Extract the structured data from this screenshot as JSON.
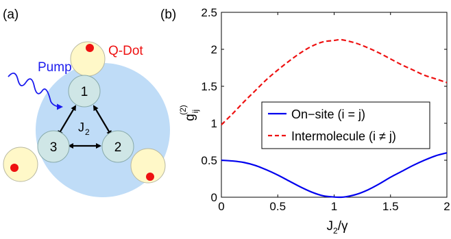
{
  "panel_a": {
    "label": "(a)",
    "pump_label": "Pump",
    "qdot_label": "Q-Dot",
    "site_labels": [
      "1",
      "2",
      "3"
    ],
    "coupling_label": "J",
    "coupling_subscript": "2",
    "colors": {
      "cluster": "#bfdcf7",
      "site_fill": "#cfe6e6",
      "qdot_fill": "#fff8c8",
      "qdot_dot": "#ee1111",
      "pump": "#1a1aee",
      "qdot_text": "#ee1111"
    }
  },
  "panel_b": {
    "label": "(b)",
    "ylabel_main": "g",
    "ylabel_sup": "(2)",
    "ylabel_sub": "ij",
    "xlabel_main": "J",
    "xlabel_sub": "2",
    "xlabel_rest": "/γ",
    "legend": {
      "onsite": "On−site (i = j)",
      "inter": "Intermolecule (i ≠ j)"
    }
  },
  "chart_data": {
    "type": "line",
    "xlim": [
      0,
      2
    ],
    "ylim": [
      0,
      2.5
    ],
    "xticks": [
      "0",
      "0.5",
      "1",
      "1.5",
      "2"
    ],
    "yticks": [
      "0",
      "0.5",
      "1",
      "1.5",
      "2",
      "2.5"
    ],
    "grid": false,
    "legend_position": "center-right",
    "series": [
      {
        "name": "On−site (i = j)",
        "color": "#0000ee",
        "style": "solid",
        "x": [
          0,
          0.1,
          0.2,
          0.3,
          0.4,
          0.5,
          0.6,
          0.7,
          0.8,
          0.9,
          1.0,
          1.05,
          1.1,
          1.2,
          1.3,
          1.4,
          1.5,
          1.6,
          1.7,
          1.8,
          1.9,
          2.0
        ],
        "y": [
          0.5,
          0.49,
          0.47,
          0.43,
          0.37,
          0.3,
          0.22,
          0.14,
          0.07,
          0.02,
          0.003,
          0.0,
          0.005,
          0.04,
          0.1,
          0.18,
          0.27,
          0.35,
          0.43,
          0.5,
          0.56,
          0.6
        ]
      },
      {
        "name": "Intermolecule (i ≠ j)",
        "color": "#ee1111",
        "style": "dashed",
        "x": [
          0,
          0.1,
          0.2,
          0.3,
          0.4,
          0.5,
          0.6,
          0.7,
          0.8,
          0.9,
          1.0,
          1.05,
          1.1,
          1.2,
          1.3,
          1.4,
          1.5,
          1.6,
          1.7,
          1.8,
          1.9,
          2.0
        ],
        "y": [
          0.98,
          1.13,
          1.29,
          1.44,
          1.59,
          1.72,
          1.84,
          1.95,
          2.04,
          2.1,
          2.12,
          2.13,
          2.12,
          2.08,
          2.02,
          1.95,
          1.87,
          1.79,
          1.72,
          1.65,
          1.6,
          1.55
        ]
      }
    ]
  }
}
